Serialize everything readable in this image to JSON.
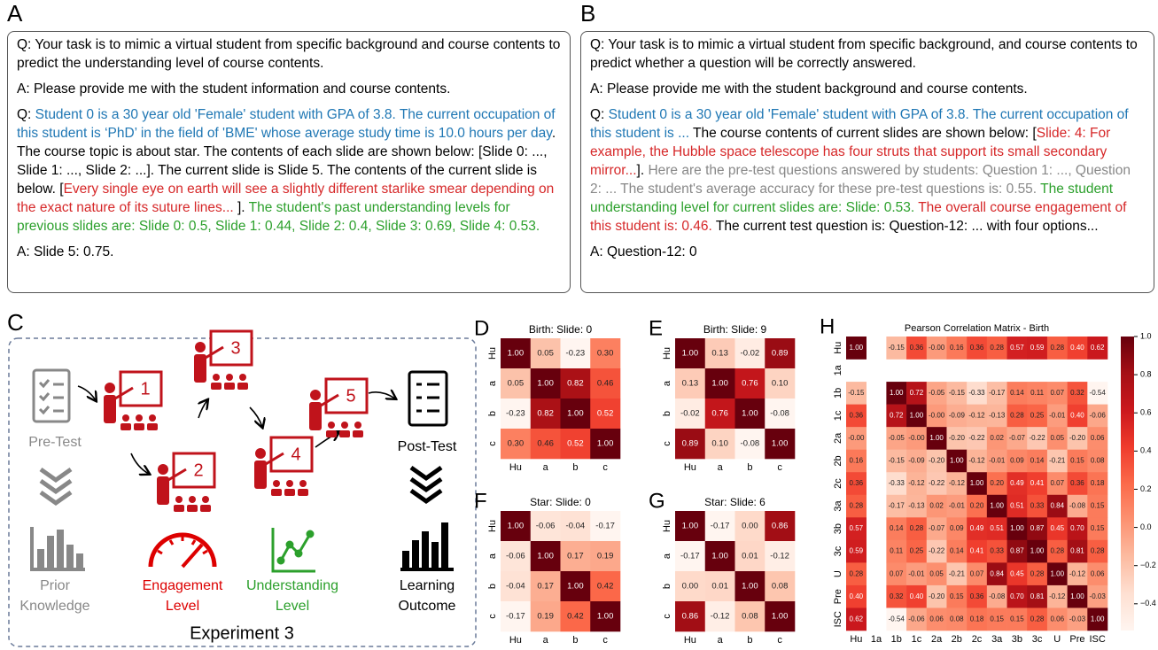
{
  "text_panels": [
    {
      "label": "A",
      "paragraphs": [
        [
          {
            "text": "Q: Your task is to mimic a virtual student from specific background and course contents to predict the understanding level of course contents.",
            "color": "#000000"
          }
        ],
        [
          {
            "text": "A: Please provide me with the student information and course contents.",
            "color": "#000000"
          }
        ],
        [
          {
            "text": "Q: ",
            "color": "#000000"
          },
          {
            "text": "Student 0 is a 30 year old 'Female' student with GPA of 3.8. The current occupation of this student is ‘PhD’ in the field of 'BME' whose average study time is 10.0 hours per day",
            "color": "#1f77b4"
          },
          {
            "text": ". The course topic is about star. The contents of each slide are shown below: [Slide 0: ..., Slide 1: ..., Slide 2: ...]. The current slide is Slide 5. The contents of the current slide is below. [",
            "color": "#000000"
          },
          {
            "text": "Every single eye on earth will see a slightly different starlike smear depending on the exact nature of its suture lines... ",
            "color": "#d62728"
          },
          {
            "text": "]. ",
            "color": "#000000"
          },
          {
            "text": "The student's past understanding levels for previous slides are: Slide 0: 0.5, Slide 1: 0.44, Slide 2: 0.4, Slide 3: 0.69, Slide 4: 0.53.",
            "color": "#2ca02c"
          }
        ],
        [
          {
            "text": "A: Slide 5: 0.75.",
            "color": "#000000"
          }
        ]
      ]
    },
    {
      "label": "B",
      "paragraphs": [
        [
          {
            "text": "Q: Your task is to mimic a virtual student from specific background, and course contents to predict whether a question will be correctly answered.",
            "color": "#000000"
          }
        ],
        [
          {
            "text": "A: Please provide me with the student background and course contents.",
            "color": "#000000"
          }
        ],
        [
          {
            "text": "Q: ",
            "color": "#000000"
          },
          {
            "text": "Student 0 is a 30 year old 'Female' student with GPA of 3.8. The current occupation of this student is ...",
            "color": "#1f77b4"
          },
          {
            "text": " The course contents of current slides are shown below: [",
            "color": "#000000"
          },
          {
            "text": "Slide: 4: For example, the Hubble space telescope has four struts that support its small secondary mirror...",
            "color": "#d62728"
          },
          {
            "text": "]. ",
            "color": "#000000"
          },
          {
            "text": "Here are the pre-test questions answered by students: Question 1: ..., Question 2: ... The student's average accuracy for these pre-test questions is: 0.55.",
            "color": "#888888"
          },
          {
            "text": " The student understanding level for current slides are: Slide: 0.53.",
            "color": "#2ca02c"
          },
          {
            "text": " The overall course engagement of this student is: 0.46.",
            "color": "#d62728"
          },
          {
            "text": " The current test question is: Question-12: ... with four options...",
            "color": "#000000"
          }
        ],
        [
          {
            "text": "A: Question-12: 0",
            "color": "#000000"
          }
        ]
      ]
    }
  ],
  "diagram": {
    "label": "C",
    "title": "Experiment 3",
    "steps": [
      "1",
      "2",
      "3",
      "4",
      "5"
    ],
    "pre_test": "Pre-Test",
    "prior_knowledge": [
      "Prior",
      "Knowledge"
    ],
    "engagement": [
      "Engagement",
      "Level"
    ],
    "understanding": [
      "Understanding",
      "Level"
    ],
    "post_test": "Post-Test",
    "learning_outcome": [
      "Learning",
      "Outcome"
    ]
  },
  "chart_data": [
    {
      "type": "heatmap",
      "panel": "D",
      "title": "Birth: Slide: 0",
      "colormap": "Reds",
      "x_labels": [
        "Hu",
        "a",
        "b",
        "c"
      ],
      "y_labels": [
        "Hu",
        "a",
        "b",
        "c"
      ],
      "values": [
        [
          1,
          0.05,
          -0.23,
          0.3
        ],
        [
          0.05,
          1,
          0.82,
          0.46
        ],
        [
          -0.23,
          0.82,
          1,
          0.52
        ],
        [
          0.3,
          0.46,
          0.52,
          1
        ]
      ],
      "value_labels": [
        [
          "1.00",
          "0.05",
          "-0.23",
          "0.30"
        ],
        [
          "0.05",
          "1.00",
          "0.82",
          "0.46"
        ],
        [
          "-0.23",
          "0.82",
          "1.00",
          "0.52"
        ],
        [
          "0.30",
          "0.46",
          "0.52",
          "1.00"
        ]
      ]
    },
    {
      "type": "heatmap",
      "panel": "E",
      "title": "Birth: Slide: 9",
      "colormap": "Reds",
      "x_labels": [
        "Hu",
        "a",
        "b",
        "c"
      ],
      "y_labels": [
        "Hu",
        "a",
        "b",
        "c"
      ],
      "values": [
        [
          1,
          0.13,
          -0.02,
          0.89
        ],
        [
          0.13,
          1,
          0.76,
          0.1
        ],
        [
          -0.02,
          0.76,
          1,
          -0.08
        ],
        [
          0.89,
          0.1,
          -0.08,
          1
        ]
      ],
      "value_labels": [
        [
          "1.00",
          "0.13",
          "-0.02",
          "0.89"
        ],
        [
          "0.13",
          "1.00",
          "0.76",
          "0.10"
        ],
        [
          "-0.02",
          "0.76",
          "1.00",
          "-0.08"
        ],
        [
          "0.89",
          "0.10",
          "-0.08",
          "1.00"
        ]
      ]
    },
    {
      "type": "heatmap",
      "panel": "F",
      "title": "Star: Slide: 0",
      "colormap": "Reds",
      "x_labels": [
        "Hu",
        "a",
        "b",
        "c"
      ],
      "y_labels": [
        "Hu",
        "a",
        "b",
        "c"
      ],
      "values": [
        [
          1,
          -0.06,
          -0.04,
          -0.17
        ],
        [
          -0.06,
          1,
          0.17,
          0.19
        ],
        [
          -0.04,
          0.17,
          1,
          0.42
        ],
        [
          -0.17,
          0.19,
          0.42,
          1
        ]
      ],
      "value_labels": [
        [
          "1.00",
          "-0.06",
          "-0.04",
          "-0.17"
        ],
        [
          "-0.06",
          "1.00",
          "0.17",
          "0.19"
        ],
        [
          "-0.04",
          "0.17",
          "1.00",
          "0.42"
        ],
        [
          "-0.17",
          "0.19",
          "0.42",
          "1.00"
        ]
      ]
    },
    {
      "type": "heatmap",
      "panel": "G",
      "title": "Star: Slide: 6",
      "colormap": "Reds",
      "x_labels": [
        "Hu",
        "a",
        "b",
        "c"
      ],
      "y_labels": [
        "Hu",
        "a",
        "b",
        "c"
      ],
      "values": [
        [
          1,
          -0.17,
          0,
          0.86
        ],
        [
          -0.17,
          1,
          0.01,
          -0.12
        ],
        [
          0,
          0.01,
          1,
          0.08
        ],
        [
          0.86,
          -0.12,
          0.08,
          1
        ]
      ],
      "value_labels": [
        [
          "1.00",
          "-0.17",
          "0.00",
          "0.86"
        ],
        [
          "-0.17",
          "1.00",
          "0.01",
          "-0.12"
        ],
        [
          "0.00",
          "0.01",
          "1.00",
          "0.08"
        ],
        [
          "0.86",
          "-0.12",
          "0.08",
          "1.00"
        ]
      ]
    },
    {
      "type": "heatmap",
      "panel": "H",
      "title": "Pearson Correlation Matrix - Birth",
      "colormap": "Reds",
      "zlim": [
        -0.54,
        1
      ],
      "colorbar_ticks": [
        {
          "value": 1,
          "label": "1.0"
        },
        {
          "value": 0.8,
          "label": "0.8"
        },
        {
          "value": 0.6,
          "label": "0.6"
        },
        {
          "value": 0.4,
          "label": "0.4"
        },
        {
          "value": 0.2,
          "label": "0.2"
        },
        {
          "value": 0,
          "label": "0.0"
        },
        {
          "value": -0.2,
          "label": "−0.2"
        },
        {
          "value": -0.4,
          "label": "−0.4"
        }
      ],
      "x_labels": [
        "Hu",
        "1a",
        "1b",
        "1c",
        "2a",
        "2b",
        "2c",
        "3a",
        "3b",
        "3c",
        "U",
        "Pre",
        "ISC"
      ],
      "y_labels": [
        "Hu",
        "1a",
        "1b",
        "1c",
        "2a",
        "2b",
        "2c",
        "3a",
        "3b",
        "3c",
        "U",
        "Pre",
        "ISC"
      ],
      "values": [
        [
          1,
          null,
          -0.15,
          0.36,
          0,
          0.16,
          0.36,
          0.28,
          0.57,
          0.59,
          0.28,
          0.4,
          0.62
        ],
        [
          null,
          null,
          null,
          null,
          null,
          null,
          null,
          null,
          null,
          null,
          null,
          null,
          null
        ],
        [
          -0.15,
          null,
          1,
          0.72,
          -0.05,
          -0.15,
          -0.33,
          -0.17,
          0.14,
          0.11,
          0.07,
          0.32,
          -0.54
        ],
        [
          0.36,
          null,
          0.72,
          1,
          0,
          -0.09,
          -0.12,
          -0.13,
          0.28,
          0.25,
          -0.01,
          0.4,
          -0.06
        ],
        [
          0,
          null,
          -0.05,
          0,
          1,
          -0.2,
          -0.22,
          0.02,
          -0.07,
          -0.22,
          0.05,
          -0.2,
          0.06
        ],
        [
          0.16,
          null,
          -0.15,
          -0.09,
          -0.2,
          1,
          -0.12,
          -0.01,
          0.09,
          0.14,
          -0.21,
          0.15,
          0.08
        ],
        [
          0.36,
          null,
          -0.33,
          -0.12,
          -0.22,
          -0.12,
          1,
          0.2,
          0.49,
          0.41,
          0.07,
          0.36,
          0.18
        ],
        [
          0.28,
          null,
          -0.17,
          -0.13,
          0.02,
          -0.01,
          0.2,
          1,
          0.51,
          0.33,
          0.84,
          -0.08,
          0.15
        ],
        [
          0.57,
          null,
          0.14,
          0.28,
          -0.07,
          0.09,
          0.49,
          0.51,
          1,
          0.87,
          0.45,
          0.7,
          0.15
        ],
        [
          0.59,
          null,
          0.11,
          0.25,
          -0.22,
          0.14,
          0.41,
          0.33,
          0.87,
          1,
          0.28,
          0.81,
          0.28
        ],
        [
          0.28,
          null,
          0.07,
          -0.01,
          0.05,
          -0.21,
          0.07,
          0.84,
          0.45,
          0.28,
          1,
          -0.12,
          0.06
        ],
        [
          0.4,
          null,
          0.32,
          0.4,
          -0.2,
          0.15,
          0.36,
          -0.08,
          0.7,
          0.81,
          -0.12,
          1,
          -0.03
        ],
        [
          0.62,
          null,
          -0.54,
          -0.06,
          0.06,
          0.08,
          0.18,
          0.15,
          0.15,
          0.28,
          0.06,
          -0.03,
          1
        ]
      ],
      "value_labels": [
        [
          "1.00",
          null,
          "-0.15",
          "0.36",
          "-0.00",
          "0.16",
          "0.36",
          "0.28",
          "0.57",
          "0.59",
          "0.28",
          "0.40",
          "0.62"
        ],
        [
          null,
          null,
          null,
          null,
          null,
          null,
          null,
          null,
          null,
          null,
          null,
          null,
          null
        ],
        [
          "-0.15",
          null,
          "1.00",
          "0.72",
          "-0.05",
          "-0.15",
          "-0.33",
          "-0.17",
          "0.14",
          "0.11",
          "0.07",
          "0.32",
          "-0.54"
        ],
        [
          "0.36",
          null,
          "0.72",
          "1.00",
          "-0.00",
          "-0.09",
          "-0.12",
          "-0.13",
          "0.28",
          "0.25",
          "-0.01",
          "0.40",
          "-0.06"
        ],
        [
          "-0.00",
          null,
          "-0.05",
          "-0.00",
          "1.00",
          "-0.20",
          "-0.22",
          "0.02",
          "-0.07",
          "-0.22",
          "0.05",
          "-0.20",
          "0.06"
        ],
        [
          "0.16",
          null,
          "-0.15",
          "-0.09",
          "-0.20",
          "1.00",
          "-0.12",
          "-0.01",
          "0.09",
          "0.14",
          "-0.21",
          "0.15",
          "0.08"
        ],
        [
          "0.36",
          null,
          "-0.33",
          "-0.12",
          "-0.22",
          "-0.12",
          "1.00",
          "0.20",
          "0.49",
          "0.41",
          "0.07",
          "0.36",
          "0.18"
        ],
        [
          "0.28",
          null,
          "-0.17",
          "-0.13",
          "0.02",
          "-0.01",
          "0.20",
          "1.00",
          "0.51",
          "0.33",
          "0.84",
          "-0.08",
          "0.15"
        ],
        [
          "0.57",
          null,
          "0.14",
          "0.28",
          "-0.07",
          "0.09",
          "0.49",
          "0.51",
          "1.00",
          "0.87",
          "0.45",
          "0.70",
          "0.15"
        ],
        [
          "0.59",
          null,
          "0.11",
          "0.25",
          "-0.22",
          "0.14",
          "0.41",
          "0.33",
          "0.87",
          "1.00",
          "0.28",
          "0.81",
          "0.28"
        ],
        [
          "0.28",
          null,
          "0.07",
          "-0.01",
          "0.05",
          "-0.21",
          "0.07",
          "0.84",
          "0.45",
          "0.28",
          "1.00",
          "-0.12",
          "0.06"
        ],
        [
          "0.40",
          null,
          "0.32",
          "0.40",
          "-0.20",
          "0.15",
          "0.36",
          "-0.08",
          "0.70",
          "0.81",
          "-0.12",
          "1.00",
          "-0.03"
        ],
        [
          "0.62",
          null,
          "-0.54",
          "-0.06",
          "0.06",
          "0.08",
          "0.18",
          "0.15",
          "0.15",
          "0.28",
          "0.06",
          "-0.03",
          "1.00"
        ]
      ]
    }
  ]
}
